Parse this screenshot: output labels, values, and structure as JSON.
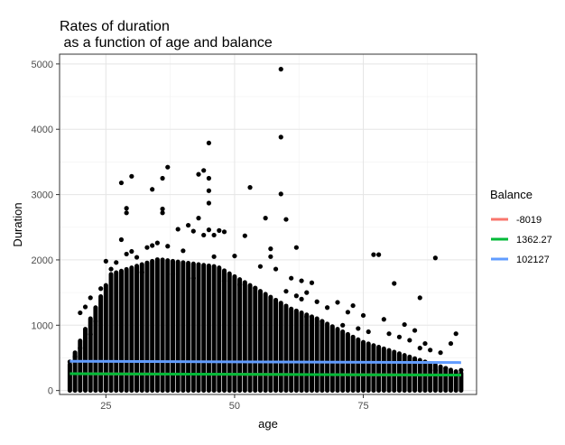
{
  "chart_data": {
    "type": "scatter",
    "title_line1": "Rates of duration",
    "title_line2": " as a function of age and balance",
    "xlabel": "age",
    "ylabel": "Duration",
    "xlim": [
      16,
      97
    ],
    "ylim": [
      -60,
      5150
    ],
    "x_ticks": [
      25,
      50,
      75
    ],
    "y_ticks": [
      0,
      1000,
      2000,
      3000,
      4000,
      5000
    ],
    "grid": true,
    "legend": {
      "title": "Balance",
      "position": "right",
      "entries": [
        {
          "label": "-8019",
          "color": "#f8766d"
        },
        {
          "label": "1362.27",
          "color": "#00ba38"
        },
        {
          "label": "102127",
          "color": "#619cff"
        }
      ]
    },
    "series": [
      {
        "name": "-8019",
        "color": "#f8766d",
        "x": [
          18,
          94
        ],
        "y": [
          257,
          237
        ]
      },
      {
        "name": "1362.27",
        "color": "#00ba38",
        "x": [
          18,
          94
        ],
        "y": [
          257,
          237
        ]
      },
      {
        "name": "102127",
        "color": "#619cff",
        "x": [
          18,
          94
        ],
        "y": [
          448,
          428
        ]
      }
    ],
    "points": [
      [
        59,
        4920
      ],
      [
        59,
        3880
      ],
      [
        45,
        3790
      ],
      [
        37,
        3420
      ],
      [
        44,
        3370
      ],
      [
        30,
        3280
      ],
      [
        43,
        3310
      ],
      [
        45,
        3250
      ],
      [
        28,
        3180
      ],
      [
        36,
        3250
      ],
      [
        53,
        3110
      ],
      [
        34,
        3080
      ],
      [
        45,
        3060
      ],
      [
        59,
        3010
      ],
      [
        45,
        2870
      ],
      [
        29,
        2790
      ],
      [
        36,
        2780
      ],
      [
        29,
        2720
      ],
      [
        36,
        2720
      ],
      [
        43,
        2640
      ],
      [
        56,
        2640
      ],
      [
        60,
        2620
      ],
      [
        41,
        2530
      ],
      [
        39,
        2470
      ],
      [
        42,
        2440
      ],
      [
        47,
        2450
      ],
      [
        45,
        2460
      ],
      [
        48,
        2430
      ],
      [
        44,
        2380
      ],
      [
        46,
        2380
      ],
      [
        52,
        2370
      ],
      [
        35,
        2260
      ],
      [
        34,
        2220
      ],
      [
        37,
        2210
      ],
      [
        33,
        2190
      ],
      [
        62,
        2190
      ],
      [
        57,
        2170
      ],
      [
        30,
        2130
      ],
      [
        40,
        2140
      ],
      [
        29,
        2090
      ],
      [
        31,
        2040
      ],
      [
        46,
        2050
      ],
      [
        50,
        2060
      ],
      [
        78,
        2080
      ],
      [
        77,
        2080
      ],
      [
        89,
        2030
      ],
      [
        25,
        1980
      ],
      [
        27,
        1960
      ],
      [
        28,
        2310
      ],
      [
        55,
        1900
      ],
      [
        58,
        1860
      ],
      [
        61,
        1720
      ],
      [
        65,
        1650
      ],
      [
        81,
        1640
      ],
      [
        86,
        1420
      ],
      [
        70,
        1350
      ],
      [
        73,
        1300
      ],
      [
        66,
        1360
      ],
      [
        63,
        1400
      ],
      [
        68,
        1270
      ],
      [
        72,
        1200
      ],
      [
        75,
        1150
      ],
      [
        79,
        1090
      ],
      [
        83,
        1010
      ],
      [
        85,
        920
      ],
      [
        87,
        720
      ],
      [
        93,
        870
      ],
      [
        92,
        720
      ],
      [
        88,
        620
      ],
      [
        90,
        580
      ],
      [
        23,
        1060
      ],
      [
        22,
        860
      ],
      [
        21,
        800
      ],
      [
        20,
        650
      ],
      [
        19,
        520
      ],
      [
        18,
        440
      ],
      [
        64,
        1130
      ],
      [
        67,
        1060
      ],
      [
        71,
        1000
      ],
      [
        74,
        950
      ],
      [
        76,
        900
      ],
      [
        80,
        870
      ],
      [
        82,
        820
      ],
      [
        84,
        770
      ],
      [
        86,
        650
      ],
      [
        91,
        340
      ],
      [
        94,
        310
      ],
      [
        89,
        310
      ],
      [
        26,
        1860
      ],
      [
        32,
        1810
      ],
      [
        38,
        1780
      ],
      [
        42,
        1720
      ],
      [
        48,
        1680
      ],
      [
        51,
        1620
      ],
      [
        54,
        1570
      ],
      [
        60,
        1520
      ],
      [
        62,
        1450
      ],
      [
        64,
        1500
      ],
      [
        24,
        1560
      ],
      [
        22,
        1420
      ],
      [
        21,
        1280
      ],
      [
        20,
        1190
      ],
      [
        63,
        1680
      ],
      [
        57,
        2050
      ]
    ]
  }
}
